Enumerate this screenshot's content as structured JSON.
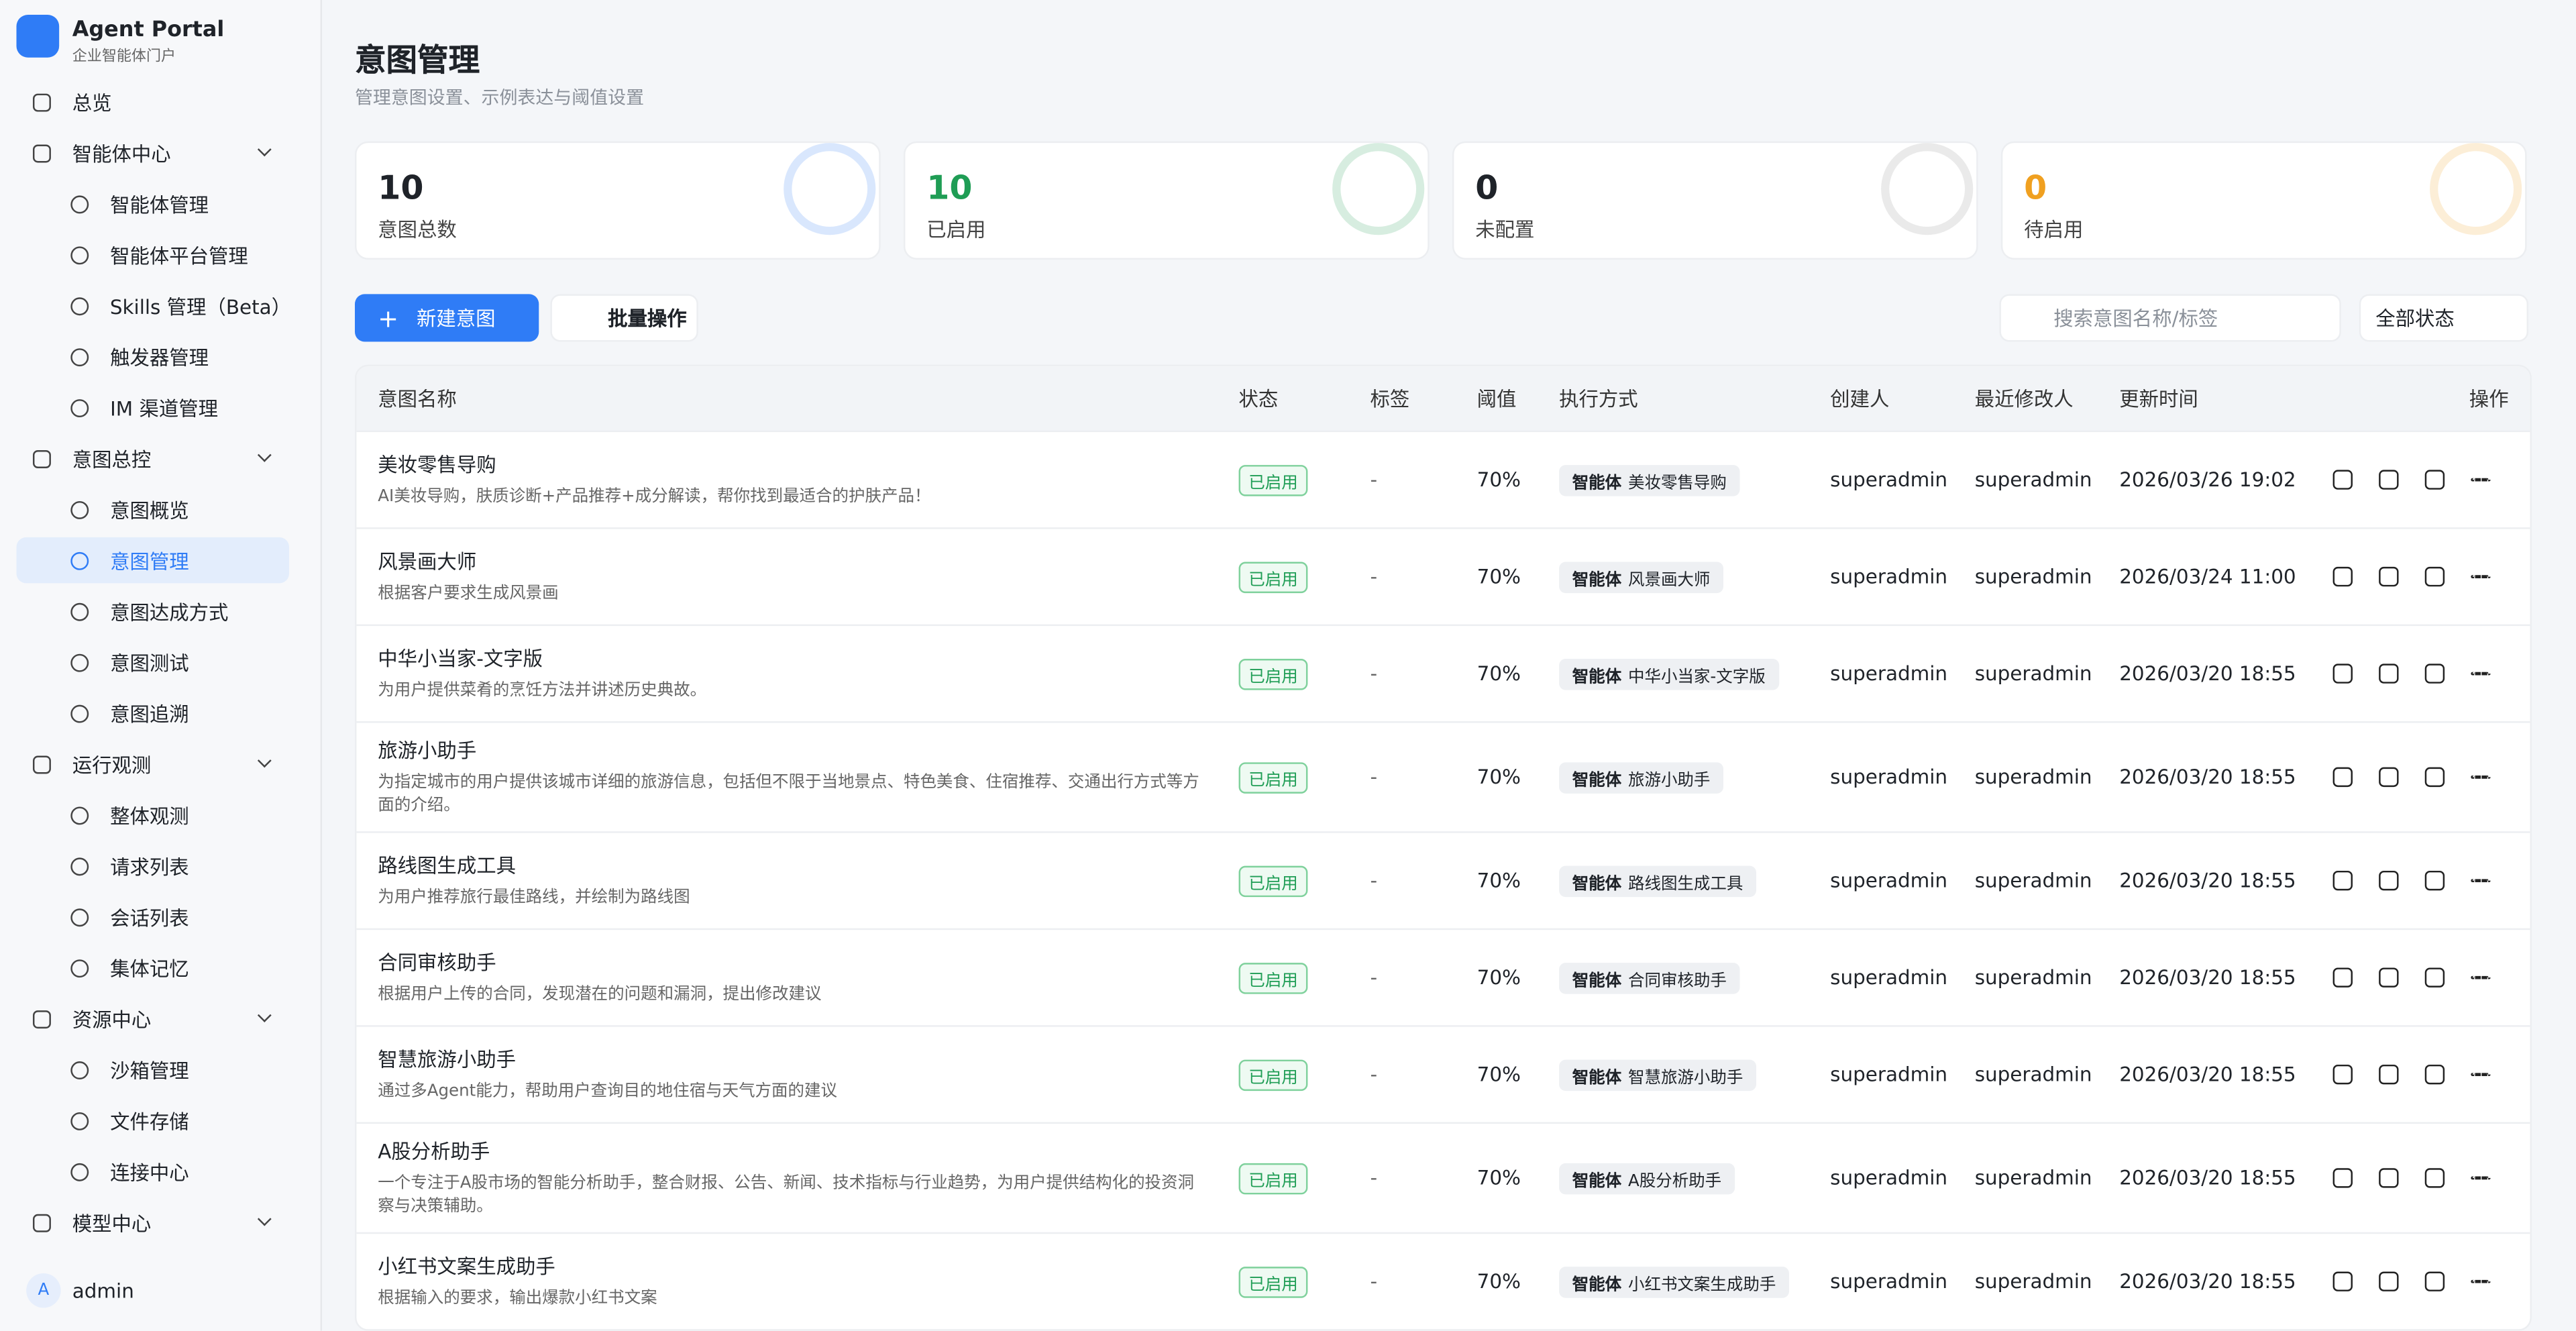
{
  "sidebar": {
    "brand": "Agent Portal",
    "brand_sub": "企业智能体门户",
    "nav": [
      {
        "label": "总览"
      },
      {
        "label": "智能体中心",
        "children": [
          "智能体管理",
          "智能体平台管理",
          "Skills 管理（Beta）",
          "触发器管理",
          "IM 渠道管理"
        ]
      },
      {
        "label": "意图总控",
        "children": [
          "意图概览",
          "意图管理",
          "意图达成方式",
          "意图测试",
          "意图追溯"
        ]
      },
      {
        "label": "运行观测",
        "children": [
          "整体观测",
          "请求列表",
          "会话列表",
          "集体记忆"
        ]
      },
      {
        "label": "资源中心",
        "children": [
          "沙箱管理",
          "文件存储",
          "连接中心"
        ]
      },
      {
        "label": "模型中心",
        "children": []
      }
    ],
    "avatar": "A",
    "user": "admin"
  },
  "header": {
    "title": "意图管理",
    "subtitle": "管理意图设置、示例表达与阈值设置"
  },
  "stats": [
    {
      "value": 10,
      "label": "意图总数"
    },
    {
      "value": 10,
      "label": "已启用"
    },
    {
      "value": 0,
      "label": "未配置"
    },
    {
      "value": 0,
      "label": "待启用"
    }
  ],
  "toolbar": {
    "new_button": "新建意图",
    "batch_button": "批量操作",
    "search_placeholder": "搜索意图名称/标签",
    "status_filter": "全部状态"
  },
  "table": {
    "columns": [
      "意图名称",
      "状态",
      "标签",
      "阈值",
      "执行方式",
      "创建人",
      "最近修改人",
      "更新时间",
      "操作"
    ],
    "rows": [
      {
        "name": "美妆零售导购",
        "desc": "AI美妆导购，肤质诊断+产品推荐+成分解读，帮你找到最适合的护肤产品！",
        "status": "已启用",
        "tag": "-",
        "threshold": "70%",
        "exec_type": "智能体",
        "exec_target": "美妆零售导购",
        "creator": "superadmin",
        "modifier": "superadmin",
        "updated": "2026/03/26 19:02"
      },
      {
        "name": "风景画大师",
        "desc": "根据客户要求生成风景画",
        "status": "已启用",
        "tag": "-",
        "threshold": "70%",
        "exec_type": "智能体",
        "exec_target": "风景画大师",
        "creator": "superadmin",
        "modifier": "superadmin",
        "updated": "2026/03/24 11:00"
      },
      {
        "name": "中华小当家-文字版",
        "desc": "为用户提供菜肴的烹饪方法并讲述历史典故。",
        "status": "已启用",
        "tag": "-",
        "threshold": "70%",
        "exec_type": "智能体",
        "exec_target": "中华小当家-文字版",
        "creator": "superadmin",
        "modifier": "superadmin",
        "updated": "2026/03/20 18:55"
      },
      {
        "name": "旅游小助手",
        "desc": "为指定城市的用户提供该城市详细的旅游信息，包括但不限于当地景点、特色美食、住宿推荐、交通出行方式等方面的介绍。",
        "status": "已启用",
        "tag": "-",
        "threshold": "70%",
        "exec_type": "智能体",
        "exec_target": "旅游小助手",
        "creator": "superadmin",
        "modifier": "superadmin",
        "updated": "2026/03/20 18:55"
      },
      {
        "name": "路线图生成工具",
        "desc": "为用户推荐旅行最佳路线，并绘制为路线图",
        "status": "已启用",
        "tag": "-",
        "threshold": "70%",
        "exec_type": "智能体",
        "exec_target": "路线图生成工具",
        "creator": "superadmin",
        "modifier": "superadmin",
        "updated": "2026/03/20 18:55"
      },
      {
        "name": "合同审核助手",
        "desc": "根据用户上传的合同，发现潜在的问题和漏洞，提出修改建议",
        "status": "已启用",
        "tag": "-",
        "threshold": "70%",
        "exec_type": "智能体",
        "exec_target": "合同审核助手",
        "creator": "superadmin",
        "modifier": "superadmin",
        "updated": "2026/03/20 18:55"
      },
      {
        "name": "智慧旅游小助手",
        "desc": "通过多Agent能力，帮助用户查询目的地住宿与天气方面的建议",
        "status": "已启用",
        "tag": "-",
        "threshold": "70%",
        "exec_type": "智能体",
        "exec_target": "智慧旅游小助手",
        "creator": "superadmin",
        "modifier": "superadmin",
        "updated": "2026/03/20 18:55"
      },
      {
        "name": "A股分析助手",
        "desc": "一个专注于A股市场的智能分析助手，整合财报、公告、新闻、技术指标与行业趋势，为用户提供结构化的投资洞察与决策辅助。",
        "status": "已启用",
        "tag": "-",
        "threshold": "70%",
        "exec_type": "智能体",
        "exec_target": "A股分析助手",
        "creator": "superadmin",
        "modifier": "superadmin",
        "updated": "2026/03/20 18:55"
      },
      {
        "name": "小红书文案生成助手",
        "desc": "根据输入的要求，输出爆款小红书文案",
        "status": "已启用",
        "tag": "-",
        "threshold": "70%",
        "exec_type": "智能体",
        "exec_target": "小红书文案生成助手",
        "creator": "superadmin",
        "modifier": "superadmin",
        "updated": "2026/03/20 18:55"
      }
    ]
  }
}
